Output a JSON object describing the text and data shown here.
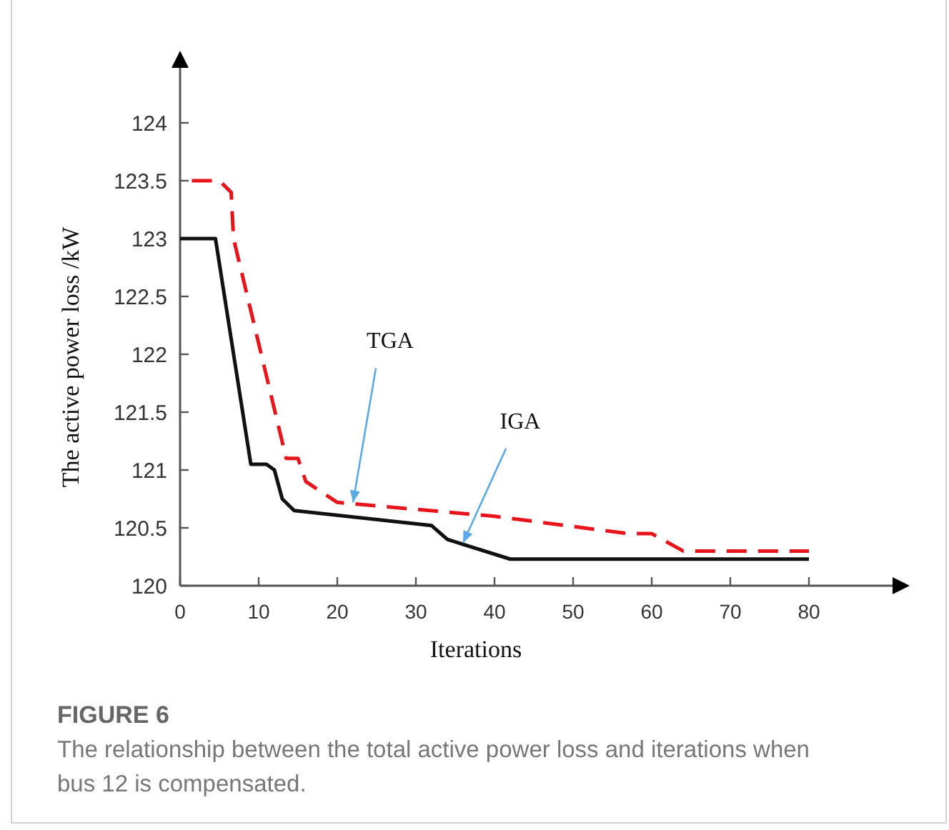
{
  "chart_data": {
    "type": "line",
    "xlabel": "Iterations",
    "ylabel": "The active power loss /kW",
    "xlim": [
      0,
      91
    ],
    "ylim": [
      120,
      124.5
    ],
    "xticks": [
      0,
      10,
      20,
      30,
      40,
      50,
      60,
      70,
      80
    ],
    "yticks": [
      120,
      120.5,
      121,
      121.5,
      122,
      122.5,
      123,
      123.5,
      124
    ],
    "grid": false,
    "series": [
      {
        "color": "#e8141b",
        "line_style": "dashed",
        "x": [
          1.5,
          5,
          6.5,
          6.8,
          13.5,
          15,
          16,
          20,
          40,
          57,
          60,
          64,
          80
        ],
        "values": [
          123.5,
          123.5,
          123.4,
          123.0,
          121.1,
          121.1,
          120.9,
          120.72,
          120.6,
          120.45,
          120.45,
          120.3,
          120.3
        ]
      },
      {
        "color": "#111111",
        "line_style": "solid",
        "x": [
          0,
          4.5,
          9,
          11,
          12,
          13,
          14.5,
          32,
          34,
          42,
          80
        ],
        "values": [
          123,
          123,
          121.05,
          121.05,
          121.0,
          120.75,
          120.65,
          120.52,
          120.4,
          120.23,
          120.23
        ]
      }
    ],
    "annotations": [
      {
        "text": "TGA",
        "x": 22,
        "y": 120.72
      },
      {
        "text": "IGA",
        "x": 36,
        "y": 120.37
      },
      "FIGURE 6",
      "The relationship between the total active power loss and iterations when bus 12 is compensated."
    ]
  }
}
